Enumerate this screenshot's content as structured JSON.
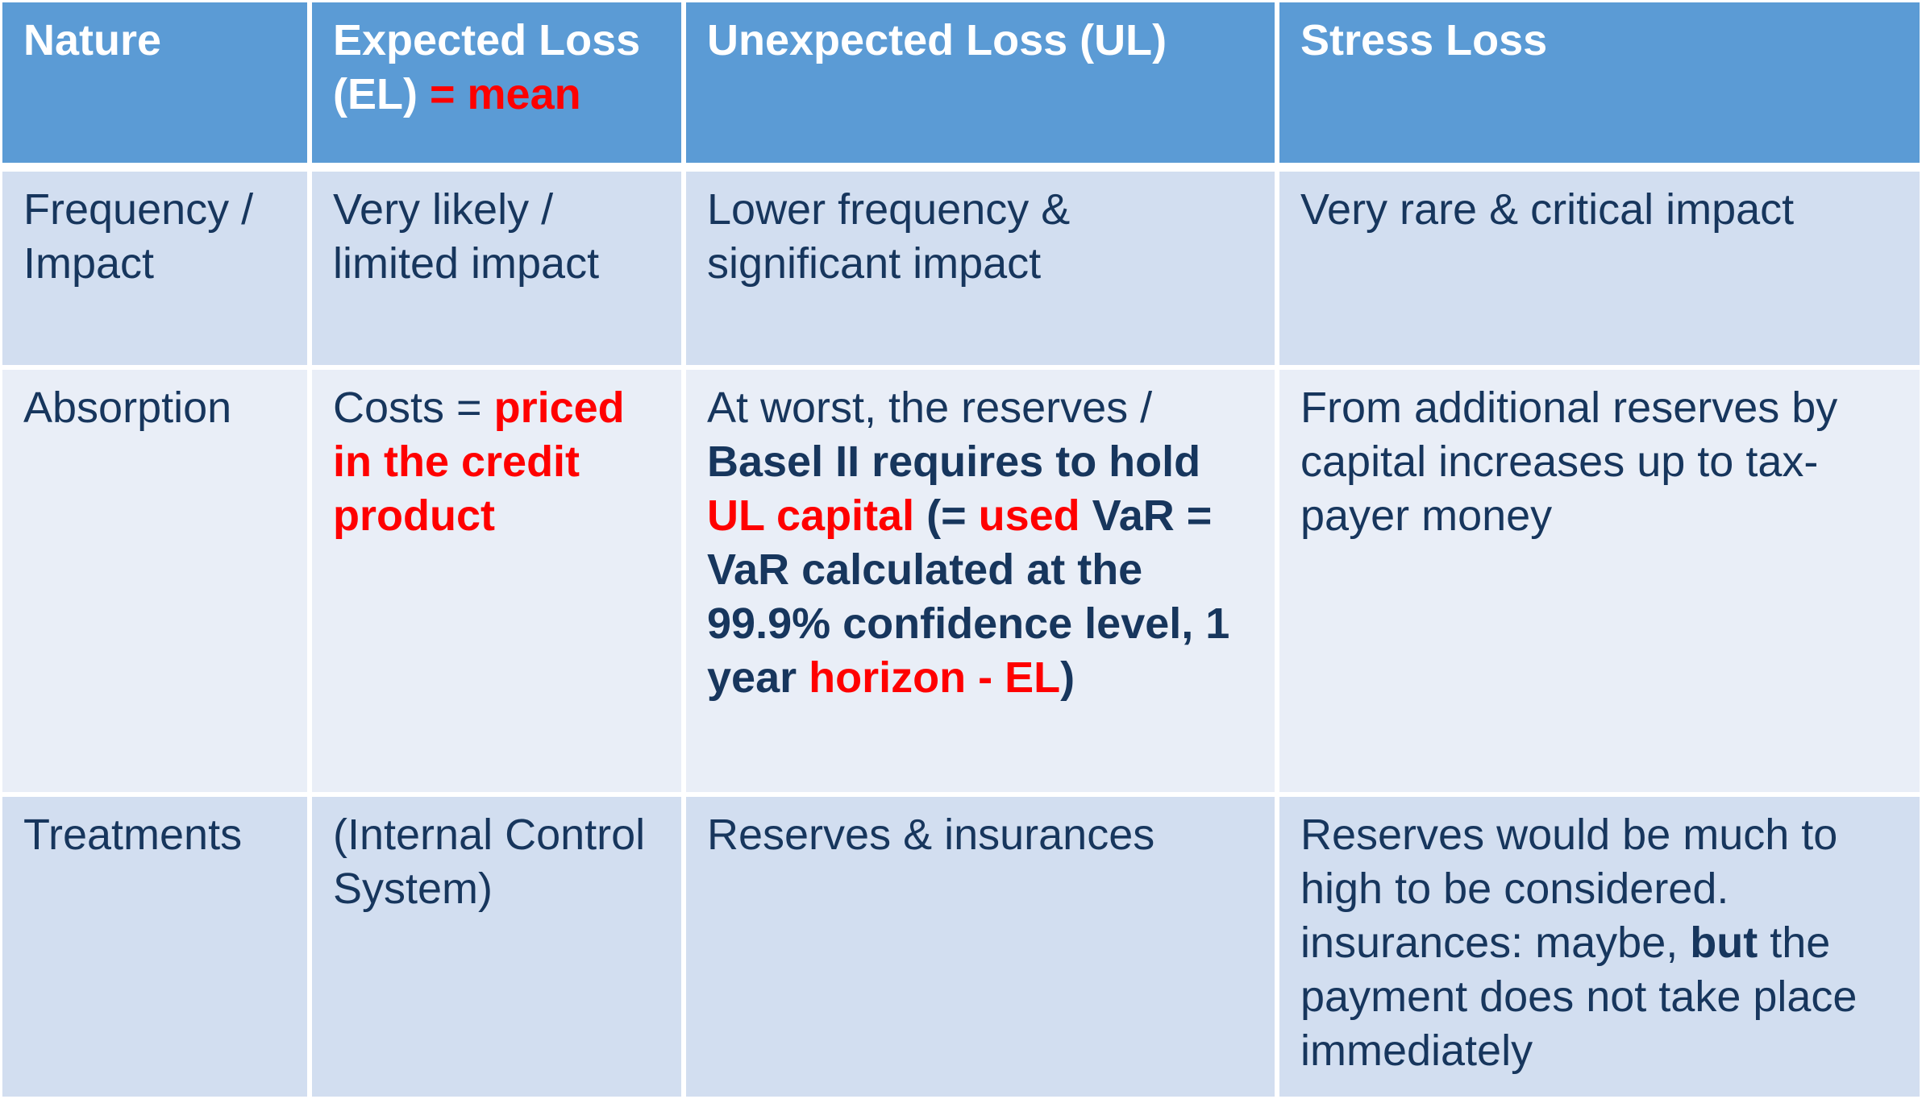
{
  "colors": {
    "header_bg": "#5b9bd5",
    "header_text": "#ffffff",
    "row_dark": "#d2def0",
    "row_light": "#e9eef7",
    "body_text": "#17365d",
    "highlight": "#ff0000"
  },
  "header": {
    "nature": "Nature",
    "el_line1": "Expected Loss",
    "el_line2_a": "(EL) ",
    "el_line2_b": "= mean",
    "ul": "Unexpected Loss (UL)",
    "stress": "Stress Loss"
  },
  "row1": {
    "label_l1": "Frequency /",
    "label_l2": "Impact",
    "el_l1": "Very likely /",
    "el_l2": "limited impact",
    "ul_l1": "Lower frequency &",
    "ul_l2": "significant impact",
    "stress_l1": "Very rare & critical impact"
  },
  "row2": {
    "label": "Absorption",
    "el_l1_a": "Costs = ",
    "el_l1_b": "priced",
    "el_l2": "in the credit",
    "el_l3": "product",
    "ul_l1": "At worst, the reserves /",
    "ul_l2": "Basel II requires to hold",
    "ul_l3_a": "UL capital",
    "ul_l3_b": " (= ",
    "ul_l3_c": "used",
    "ul_l3_d": " VaR =",
    "ul_l4": "VaR calculated at the",
    "ul_l5": "99.9% confidence level, 1",
    "ul_l6_a": "year ",
    "ul_l6_b": "horizon - EL",
    "ul_l6_c": ")",
    "stress_l1": "From additional reserves  by",
    "stress_l2": "capital increases up to tax-",
    "stress_l3": "payer money"
  },
  "row3": {
    "label": "Treatments",
    "el_l1": "(Internal Control",
    "el_l2": "System)",
    "ul_l1": "Reserves & insurances",
    "stress_l1": "Reserves would be much to",
    "stress_l2": "high to be considered.",
    "stress_l3_a": "insurances: maybe, ",
    "stress_l3_b": "but",
    "stress_l3_c": " the",
    "stress_l4": "payment does not take place",
    "stress_l5": "immediately"
  }
}
